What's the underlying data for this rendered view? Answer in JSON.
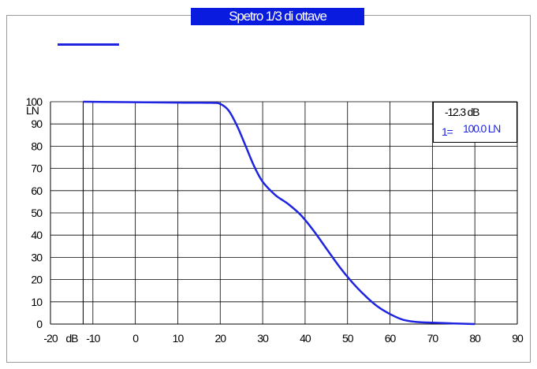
{
  "title": "Spetro 1/3 di ottave",
  "legend": {
    "color": "#1f24e0"
  },
  "cursor": {
    "db": "-12.3 dB",
    "index": "1=",
    "value": "100.0 LN"
  },
  "chart_data": {
    "type": "line",
    "title": "Spetro 1/3 di ottave",
    "x_unit_label": "dB",
    "y_unit_label": "LN",
    "xlim": [
      -20,
      90
    ],
    "ylim": [
      0,
      100
    ],
    "x_ticks": [
      -20,
      -10,
      0,
      10,
      20,
      30,
      40,
      50,
      60,
      70,
      80,
      90
    ],
    "y_ticks": [
      0,
      10,
      20,
      30,
      40,
      50,
      60,
      70,
      80,
      90,
      100
    ],
    "cursor_x": -12.3,
    "grid": true,
    "series": [
      {
        "color": "#1f24e0",
        "x": [
          -12.3,
          0,
          10,
          18,
          20,
          22,
          24,
          26,
          28,
          30,
          33,
          36,
          39,
          42,
          45,
          48,
          51,
          54,
          57,
          60,
          63,
          66,
          70,
          75,
          80
        ],
        "y": [
          100,
          99.8,
          99.6,
          99.5,
          99,
          96,
          89,
          80,
          71,
          64,
          58,
          54,
          49,
          42,
          34,
          26,
          19,
          13,
          8,
          4.5,
          2,
          1,
          0.6,
          0.3,
          0
        ]
      }
    ]
  }
}
